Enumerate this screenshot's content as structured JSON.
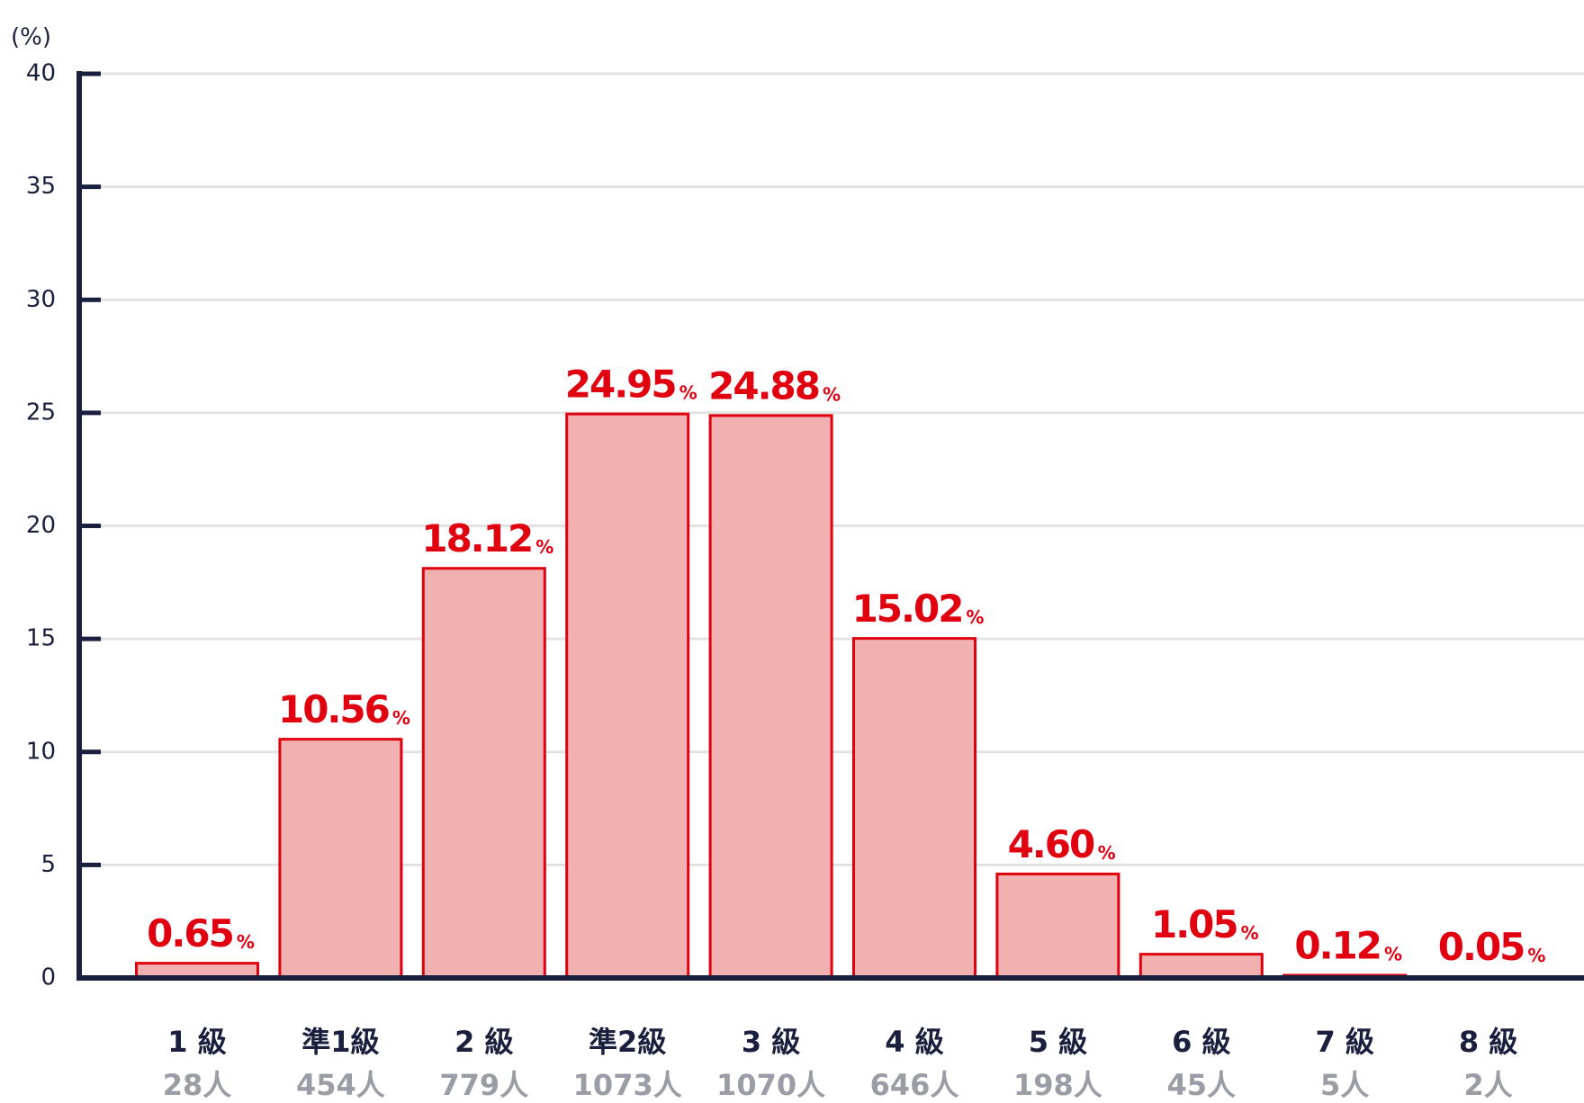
{
  "chart_data": {
    "type": "bar",
    "y_axis_label": "(%)",
    "categories": [
      "1 級",
      "準1級",
      "2 級",
      "準2級",
      "3 級",
      "4 級",
      "5 級",
      "6 級",
      "7 級",
      "8 級"
    ],
    "counts": [
      "28人",
      "454人",
      "779人",
      "1073人",
      "1070人",
      "646人",
      "198人",
      "45人",
      "5人",
      "2人"
    ],
    "values": [
      0.65,
      10.56,
      18.12,
      24.95,
      24.88,
      15.02,
      4.6,
      1.05,
      0.12,
      0.05
    ],
    "value_labels": [
      "0.65",
      "10.56",
      "18.12",
      "24.95",
      "24.88",
      "15.02",
      "4.60",
      "1.05",
      "0.12",
      "0.05"
    ],
    "value_unit": "%",
    "color": "#f2b1b1",
    "edge_color": "#e0000f",
    "ylim": [
      0,
      40
    ],
    "yticks": [
      0,
      5,
      10,
      15,
      20,
      25,
      30,
      35,
      40
    ],
    "grid": true
  }
}
